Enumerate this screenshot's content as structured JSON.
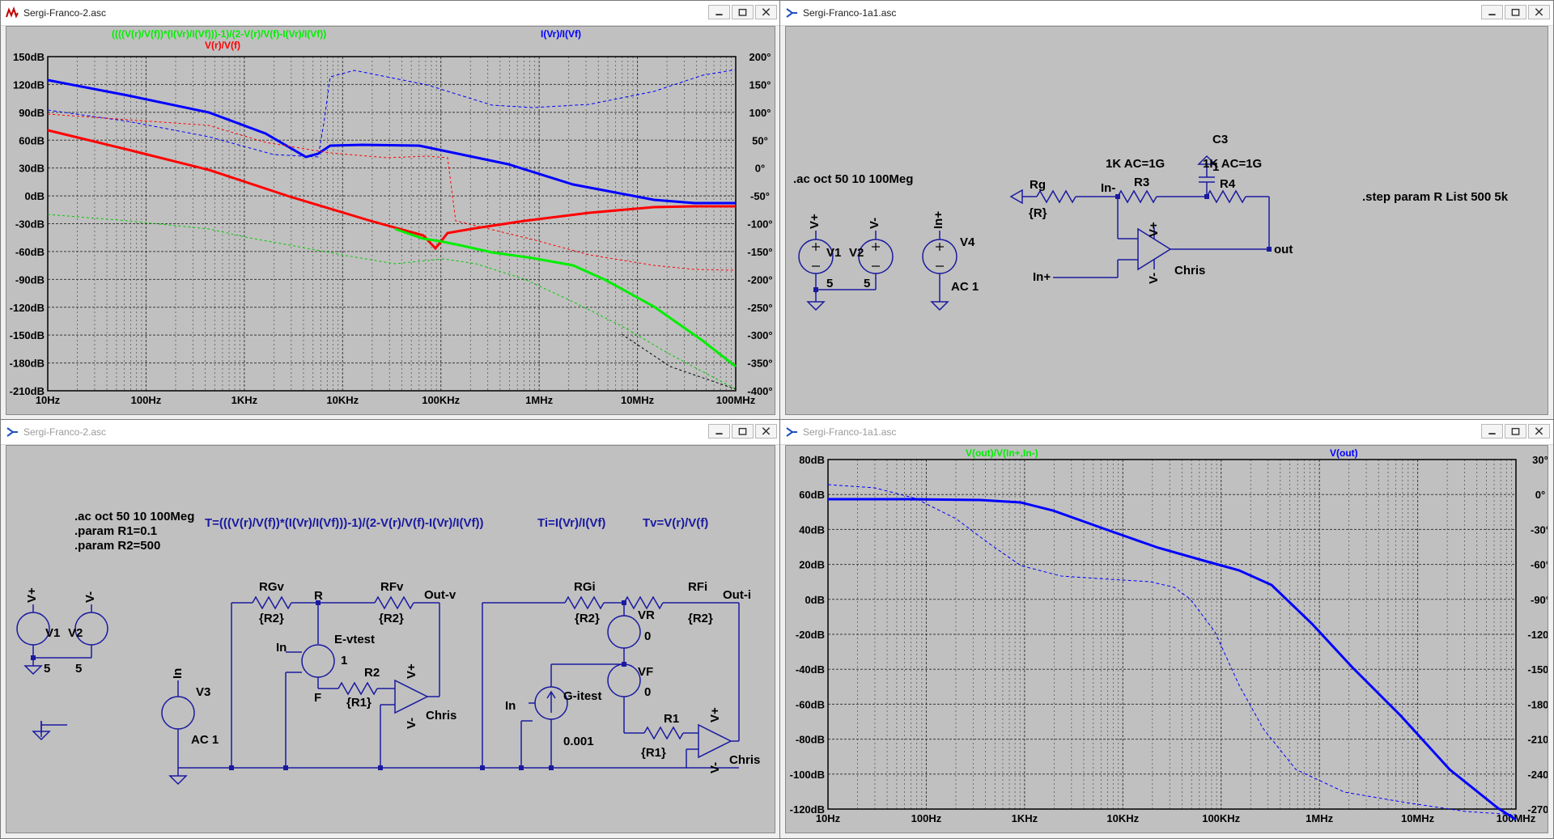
{
  "windows": {
    "plot1": {
      "title": "Sergi-Franco-2.asc"
    },
    "schem1": {
      "title": "Sergi-Franco-1a1.asc"
    },
    "schem2": {
      "title": "Sergi-Franco-2.asc"
    },
    "plot2": {
      "title": "Sergi-Franco-1a1.asc"
    }
  },
  "plot1": {
    "traces": [
      {
        "label": "((((V(r)/V(f))*(I(Vr)/I(Vf)))-1)/(2-V(r)/V(f)-I(Vr)/I(Vf))",
        "color": "#00ee00"
      },
      {
        "label": "V(r)/V(f)",
        "color": "#ff0000"
      },
      {
        "label": "I(Vr)/I(Vf)",
        "color": "#0000ff"
      }
    ],
    "y_left_ticks": [
      "150dB",
      "120dB",
      "90dB",
      "60dB",
      "30dB",
      "0dB",
      "-30dB",
      "-60dB",
      "-90dB",
      "-120dB",
      "-150dB",
      "-180dB",
      "-210dB"
    ],
    "y_right_ticks": [
      "200°",
      "150°",
      "100°",
      "50°",
      "0°",
      "-50°",
      "-100°",
      "-150°",
      "-200°",
      "-250°",
      "-300°",
      "-350°",
      "-400°"
    ],
    "x_ticks": [
      "10Hz",
      "100Hz",
      "1KHz",
      "10KHz",
      "100KHz",
      "1MHz",
      "10MHz",
      "100MHz"
    ]
  },
  "plot2": {
    "traces": [
      {
        "label": "V(out)/V(In+,In-)",
        "color": "#00ee00"
      },
      {
        "label": "V(out)",
        "color": "#0000ff"
      }
    ],
    "y_left_ticks": [
      "80dB",
      "60dB",
      "40dB",
      "20dB",
      "0dB",
      "-20dB",
      "-40dB",
      "-60dB",
      "-80dB",
      "-100dB",
      "-120dB"
    ],
    "y_right_ticks": [
      "30°",
      "0°",
      "-30°",
      "-60°",
      "-90°",
      "-120°",
      "-150°",
      "-180°",
      "-210°",
      "-240°",
      "-270°"
    ],
    "x_ticks": [
      "10Hz",
      "100Hz",
      "1KHz",
      "10KHz",
      "100KHz",
      "1MHz",
      "10MHz",
      "100MHz"
    ]
  },
  "schem1": {
    "directive_ac": ".ac oct 50 10 100Meg",
    "directive_step": ".step param R List 500 5k",
    "v1": "V1",
    "v2": "V2",
    "v1_val": "5",
    "v2_val": "5",
    "v4": "V4",
    "v4_val": "AC 1",
    "vplus": "V+",
    "vminus": "V-",
    "inplus": "In+",
    "inminus": "In-",
    "rg": "Rg",
    "rg_val": "{R}",
    "r3": "R3",
    "r3_val": "1K AC=1G",
    "r4": "R4",
    "r4_val": "1K AC=1G",
    "c3": "C3",
    "c3_val": "1",
    "opamp": "Chris",
    "out": "out"
  },
  "schem2": {
    "directive_ac": ".ac oct 50 10 100Meg",
    "param_r1": ".param R1=0.1",
    "param_r2": ".param R2=500",
    "expr_t": "T=(((V(r)/V(f))*(I(Vr)/I(Vf)))-1)/(2-V(r)/V(f)-I(Vr)/I(Vf))",
    "expr_ti": "Ti=I(Vr)/I(Vf)",
    "expr_tv": "Tv=V(r)/V(f)",
    "v1": "V1",
    "v2": "V2",
    "v_val": "5",
    "vplus": "V+",
    "vminus": "V-",
    "v3": "V3",
    "v3_val": "AC 1",
    "in": "In",
    "rgv": "RGv",
    "rfv": "RFv",
    "rgi": "RGi",
    "rfi": "RFi",
    "r2val": "{R2}",
    "r_node": "R",
    "f_node": "F",
    "evtest": "E-vtest",
    "e_gain": "1",
    "r2": "R2",
    "r1": "R1",
    "r1val": "{R1}",
    "outv": "Out-v",
    "outi": "Out-i",
    "opamp": "Chris",
    "vr": "VR",
    "vr_val": "0",
    "vf": "VF",
    "vf_val": "0",
    "gitest": "G-itest",
    "g_gain": "0.001"
  }
}
